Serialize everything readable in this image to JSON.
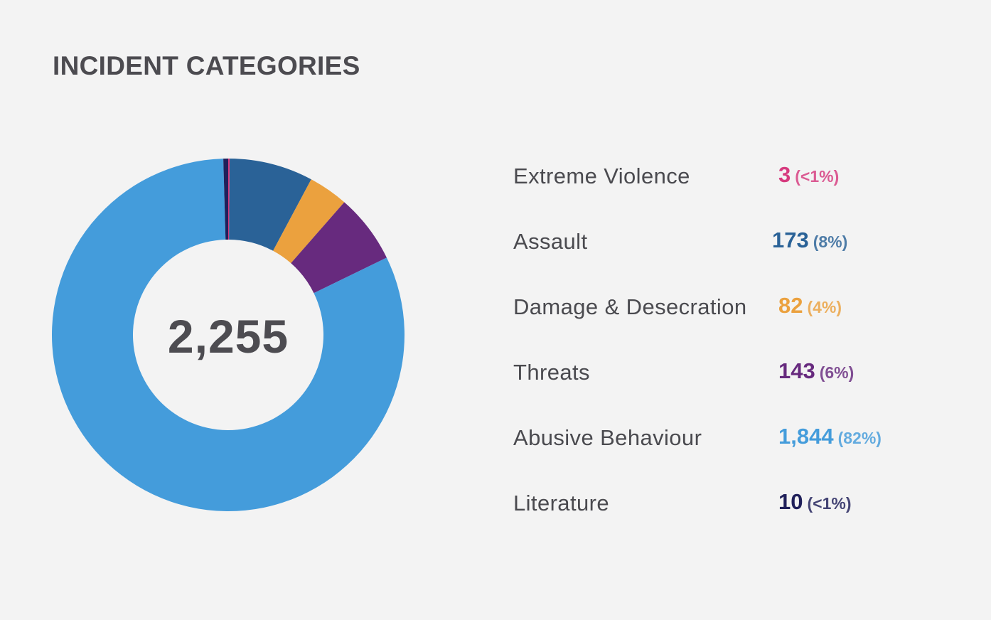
{
  "title": "INCIDENT CATEGORIES",
  "total": "2,255",
  "categories": [
    {
      "label": "Extreme Violence",
      "count": "3",
      "pct": "(<1%)",
      "color": "#d63a7e"
    },
    {
      "label": "Assault",
      "count": "173",
      "pct": "(8%)",
      "color": "#2a6297"
    },
    {
      "label": "Damage & Desecration",
      "count": "82",
      "pct": "(4%)",
      "color": "#eba13e"
    },
    {
      "label": "Threats",
      "count": "143",
      "pct": "(6%)",
      "color": "#672a7e"
    },
    {
      "label": "Abusive Behaviour",
      "count": "1,844",
      "pct": "(82%)",
      "color": "#449cdb"
    },
    {
      "label": "Literature",
      "count": "10",
      "pct": "(<1%)",
      "color": "#20205a"
    }
  ],
  "chart_data": {
    "type": "pie",
    "title": "INCIDENT CATEGORIES",
    "center_label": "2,255",
    "categories": [
      "Extreme Violence",
      "Assault",
      "Damage & Desecration",
      "Threats",
      "Abusive Behaviour",
      "Literature"
    ],
    "values": [
      3,
      173,
      82,
      143,
      1844,
      10
    ],
    "colors": [
      "#d63a7e",
      "#2a6297",
      "#eba13e",
      "#672a7e",
      "#449cdb",
      "#20205a"
    ],
    "legend": "right"
  }
}
